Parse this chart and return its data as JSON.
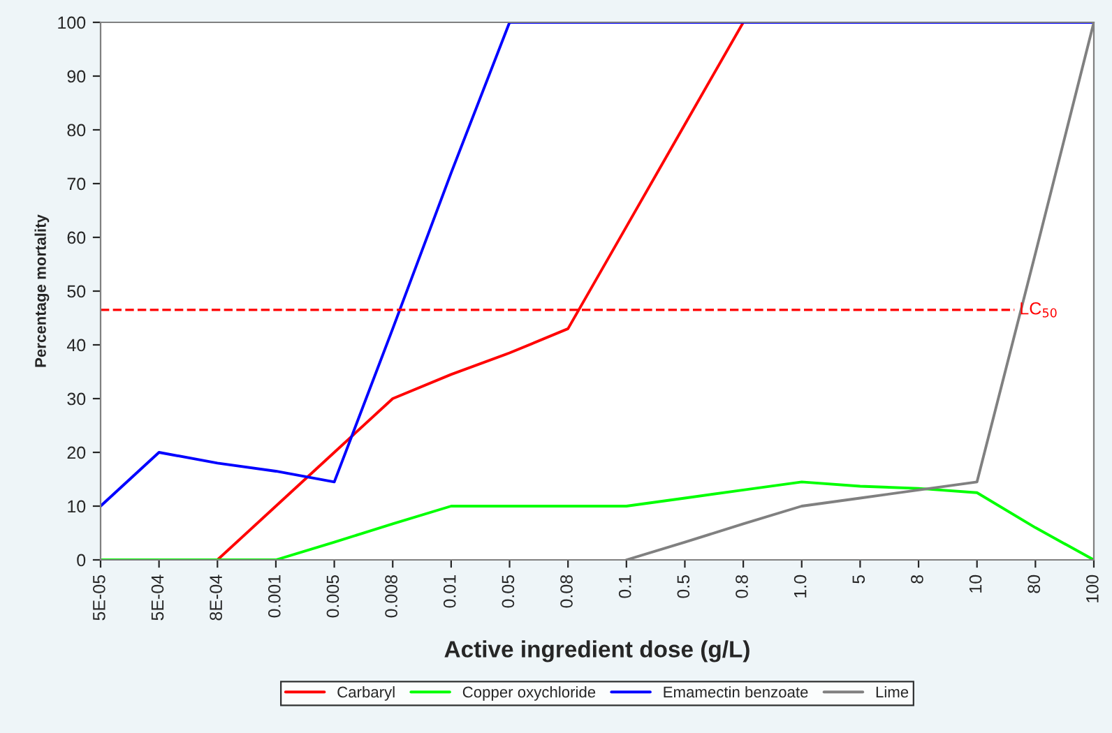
{
  "chart_data": {
    "type": "line",
    "xlabel": "Active ingredient dose (g/L)",
    "ylabel": "Percentage mortality",
    "categories": [
      "5E-05",
      "5E-04",
      "8E-04",
      "0.001",
      "0.005",
      "0.008",
      "0.01",
      "0.05",
      "0.08",
      "0.1",
      "0.5",
      "0.8",
      "1.0",
      "5",
      "8",
      "10",
      "80",
      "100"
    ],
    "series": [
      {
        "name": "Carbaryl",
        "color": "#ff0000",
        "values": [
          0,
          0,
          0,
          10,
          20,
          30,
          34.5,
          38.5,
          43,
          62,
          81,
          100,
          null,
          null,
          null,
          null,
          null,
          null
        ]
      },
      {
        "name": "Copper oxychloride",
        "color": "#00ff00",
        "values": [
          0,
          0,
          0,
          0,
          3.3,
          6.7,
          10,
          10,
          10,
          10,
          11.5,
          13,
          14.5,
          13.7,
          13.3,
          12.5,
          6,
          0
        ]
      },
      {
        "name": "Emamectin benzoate",
        "color": "#0000ff",
        "values": [
          10,
          20,
          18,
          16.5,
          14.5,
          43,
          72,
          100,
          100,
          100,
          100,
          100,
          100,
          100,
          100,
          100,
          100,
          100
        ]
      },
      {
        "name": "Lime",
        "color": "#808080",
        "values": [
          null,
          null,
          null,
          null,
          null,
          null,
          null,
          null,
          null,
          0,
          3.3,
          6.7,
          10,
          11.5,
          13,
          14.5,
          57,
          100
        ]
      }
    ],
    "ylim": [
      0,
      100
    ],
    "yticks": [
      0,
      10,
      20,
      30,
      40,
      50,
      60,
      70,
      80,
      90,
      100
    ],
    "ref_lines": [
      {
        "axis": "y",
        "value": 46.5,
        "label": "LC$_{50}$",
        "color": "#ff0000",
        "line_style": "dashed"
      }
    ],
    "grid": false,
    "legend": "bottom",
    "marker": "none",
    "line_style": "solid"
  }
}
